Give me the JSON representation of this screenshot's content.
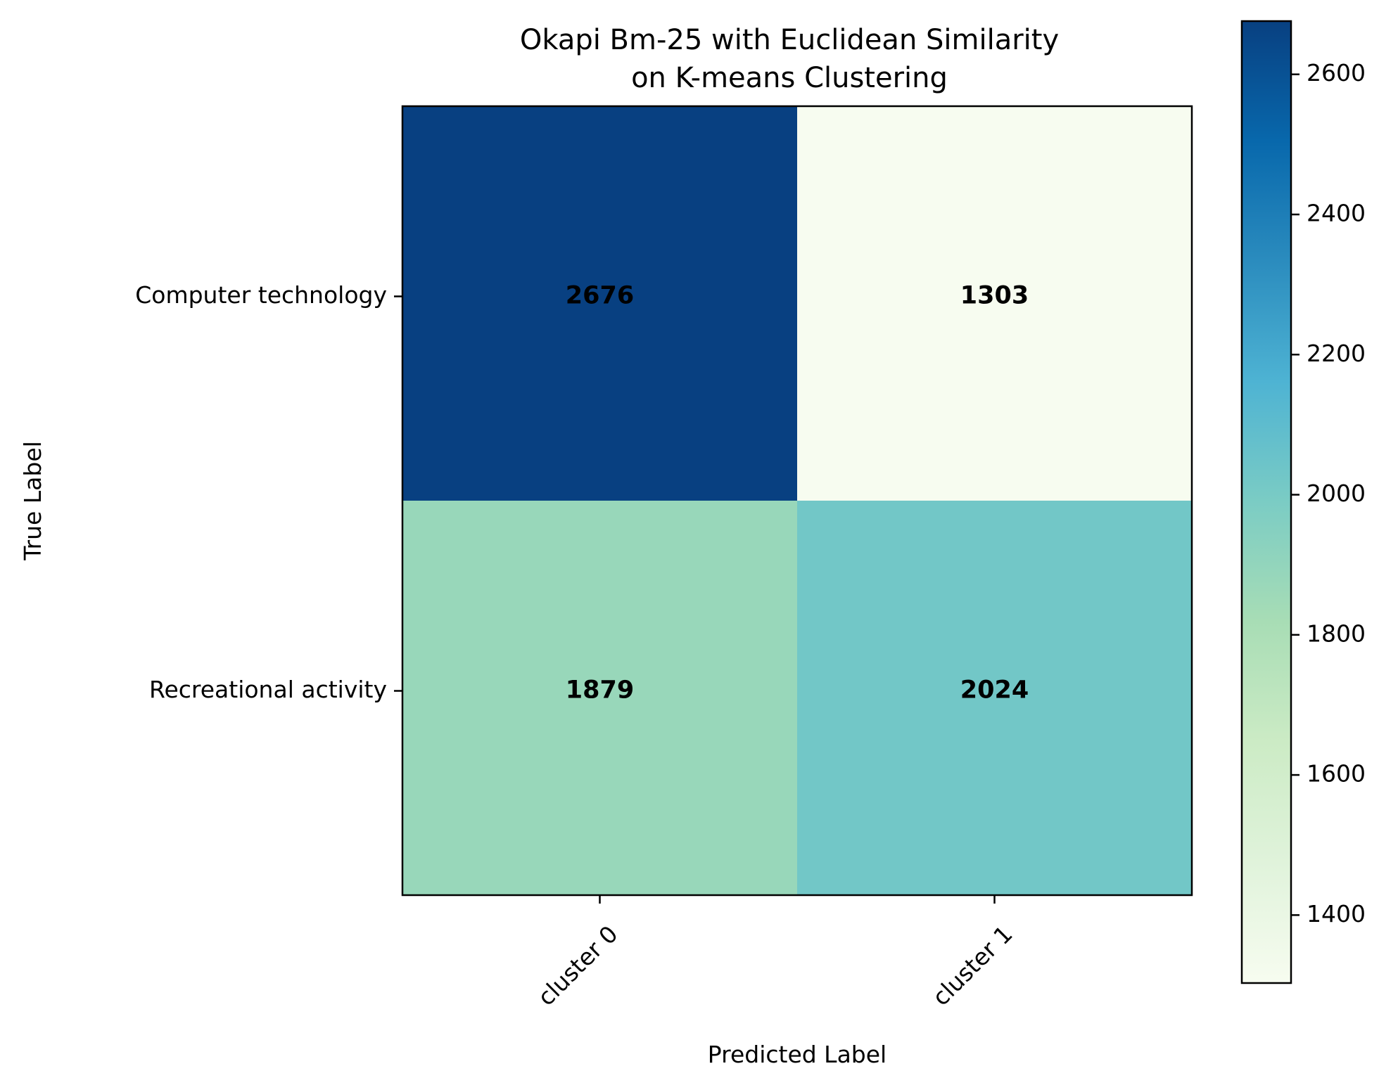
{
  "chart_data": {
    "type": "heatmap",
    "title_lines": [
      "Okapi Bm-25 with Euclidean Similarity",
      "on K-means Clustering"
    ],
    "xlabel": "Predicted Label",
    "ylabel": "True Label",
    "x_categories": [
      "cluster 0",
      "cluster 1"
    ],
    "y_categories": [
      "Computer technology",
      "Recreational activity"
    ],
    "values": [
      [
        2676,
        1303
      ],
      [
        1879,
        2024
      ]
    ],
    "colormap": "GnBu",
    "colorbar": {
      "min": 1303,
      "max": 2676,
      "ticks": [
        1400,
        1600,
        1800,
        2000,
        2200,
        2400,
        2600
      ]
    },
    "colormap_stops": [
      "#f7fcf0",
      "#e0f3db",
      "#ccebc5",
      "#a8ddb5",
      "#7bccc4",
      "#4eb3d3",
      "#2b8cbe",
      "#0868ac",
      "#084081"
    ]
  }
}
